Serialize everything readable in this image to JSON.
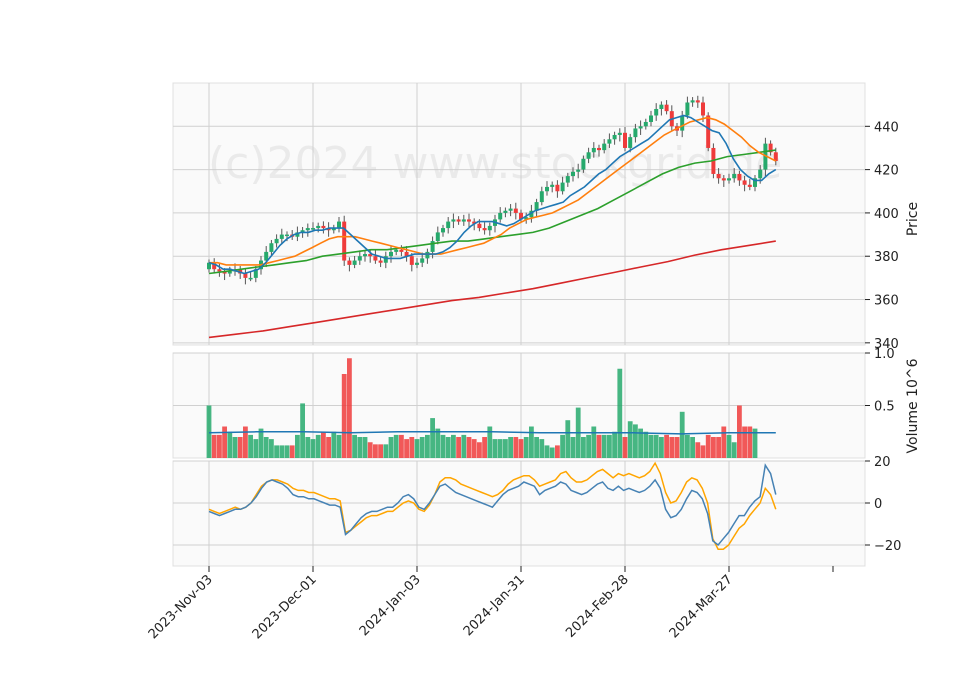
{
  "chart_data": {
    "type": "candlestick",
    "watermark": "(c)2024 www.stockgrid.de",
    "x_tick_labels": [
      "2023-Nov-03",
      "2023-Dec-01",
      "2024-Jan-03",
      "2024-Jan-31",
      "2024-Feb-28",
      "2024-Mar-27"
    ],
    "x_tick_index": [
      0,
      20,
      40,
      60,
      80,
      100
    ],
    "colors": {
      "up": "#26a96c",
      "down": "#ef3b3b",
      "ma_fast": "#1f77b4",
      "ma_mid": "#ff7f0e",
      "ma_slow": "#2ca02c",
      "ma_long": "#d62728",
      "signal": "#ffa500",
      "osc": "#4682b4"
    },
    "price": {
      "ylabel": "Price",
      "ylim": [
        339,
        460
      ],
      "yticks": [
        340,
        360,
        380,
        400,
        420,
        440
      ],
      "close": [
        377,
        374,
        373,
        372,
        373,
        374,
        372,
        370,
        370,
        374,
        378,
        382,
        386,
        388,
        390,
        390,
        389,
        391,
        392,
        393,
        393,
        394,
        393,
        392,
        393,
        396,
        378,
        376,
        378,
        380,
        381,
        380,
        378,
        377,
        380,
        382,
        383,
        382,
        380,
        376,
        377,
        379,
        382,
        387,
        391,
        393,
        396,
        397,
        396,
        397,
        396,
        395,
        393,
        392,
        394,
        397,
        400,
        401,
        402,
        400,
        397,
        398,
        401,
        405,
        410,
        412,
        413,
        410,
        414,
        417,
        419,
        420,
        425,
        428,
        430,
        429,
        432,
        434,
        436,
        437,
        430,
        435,
        439,
        440,
        442,
        445,
        448,
        450,
        447,
        440,
        438,
        445,
        451,
        452,
        451,
        445,
        430,
        418,
        416,
        415,
        416,
        418,
        415,
        413,
        412,
        416,
        420,
        432,
        428,
        424
      ],
      "ma_long": {
        "values": [
          342.5,
          344,
          345.5,
          347.5,
          349.5,
          351.5,
          353.5,
          355.5,
          357.5,
          359.5,
          361,
          363,
          365,
          367.5,
          370,
          372.5,
          375,
          377.5,
          380.5,
          383,
          385,
          387
        ]
      },
      "ma_fast": {
        "values": [
          377,
          376,
          374,
          374,
          373,
          372,
          373,
          374,
          377,
          381,
          385,
          388,
          390,
          391,
          391,
          392,
          392,
          393,
          393,
          393,
          390,
          387,
          384,
          381,
          380,
          379,
          379,
          379,
          380,
          381,
          381,
          381,
          381,
          382,
          384,
          387,
          391,
          394,
          396,
          396,
          396,
          395,
          394,
          395,
          397,
          399,
          401,
          402,
          403,
          404,
          405,
          408,
          410,
          412,
          415,
          418,
          420,
          423,
          426,
          428,
          430,
          432,
          434,
          437,
          440,
          443,
          444,
          445,
          444,
          442,
          440,
          438,
          437,
          432,
          425,
          420,
          417,
          415,
          415,
          418,
          420
        ]
      },
      "ma_mid": {
        "values": [
          377,
          377,
          376,
          376,
          376,
          376,
          376,
          377,
          378,
          379,
          380,
          382,
          384,
          386,
          388,
          389,
          389,
          389,
          388,
          387,
          386,
          385,
          384,
          383,
          382,
          381,
          381,
          381,
          382,
          383,
          384,
          385,
          386,
          388,
          390,
          393,
          395,
          397,
          398,
          399,
          400,
          402,
          404,
          406,
          409,
          412,
          415,
          418,
          421,
          424,
          427,
          430,
          433,
          436,
          438,
          440,
          442,
          443,
          444,
          443,
          441,
          438,
          435,
          431,
          428,
          426,
          424
        ]
      },
      "ma_slow": {
        "values": [
          372,
          373,
          374,
          375,
          376,
          377,
          378,
          380,
          381,
          382,
          383,
          383,
          384,
          385,
          386,
          387,
          387,
          388,
          389,
          390,
          391,
          393,
          396,
          399,
          402,
          406,
          410,
          414,
          418,
          421,
          423,
          424,
          426,
          427,
          428,
          429
        ]
      }
    },
    "volume": {
      "ylabel": "Volume  10^6",
      "ylim": [
        0,
        1.0
      ],
      "yticks": [
        0.5,
        1.0
      ],
      "values": [
        0.5,
        0.22,
        0.22,
        0.3,
        0.25,
        0.2,
        0.2,
        0.3,
        0.22,
        0.18,
        0.28,
        0.2,
        0.18,
        0.12,
        0.12,
        0.12,
        0.12,
        0.22,
        0.52,
        0.2,
        0.18,
        0.22,
        0.25,
        0.2,
        0.25,
        0.22,
        0.8,
        0.95,
        0.22,
        0.2,
        0.2,
        0.15,
        0.13,
        0.13,
        0.13,
        0.2,
        0.22,
        0.22,
        0.18,
        0.2,
        0.18,
        0.2,
        0.22,
        0.38,
        0.28,
        0.22,
        0.2,
        0.22,
        0.2,
        0.22,
        0.2,
        0.18,
        0.15,
        0.2,
        0.3,
        0.18,
        0.18,
        0.18,
        0.2,
        0.2,
        0.18,
        0.2,
        0.3,
        0.2,
        0.18,
        0.12,
        0.1,
        0.12,
        0.22,
        0.36,
        0.2,
        0.48,
        0.2,
        0.22,
        0.3,
        0.22,
        0.22,
        0.22,
        0.25,
        0.85,
        0.2,
        0.35,
        0.32,
        0.28,
        0.25,
        0.22,
        0.22,
        0.2,
        0.22,
        0.2,
        0.2,
        0.44,
        0.22,
        0.2,
        0.15,
        0.12,
        0.22,
        0.2,
        0.2,
        0.3,
        0.22,
        0.15,
        0.5,
        0.3,
        0.3,
        0.28
      ],
      "ma_values": [
        0.24,
        0.25,
        0.25,
        0.24,
        0.25,
        0.25,
        0.25,
        0.24,
        0.24,
        0.24,
        0.23,
        0.24,
        0.24
      ]
    },
    "oscillator": {
      "ylim": [
        -30,
        20
      ],
      "yticks": [
        -20,
        0,
        20
      ],
      "osc": [
        -4,
        -5,
        -6,
        -5,
        -4,
        -3,
        -3,
        -2,
        0,
        3,
        7,
        10,
        11,
        10,
        9,
        7,
        4,
        3,
        3,
        2,
        2,
        1,
        0,
        -1,
        -1,
        -2,
        -15,
        -13,
        -10,
        -7,
        -5,
        -4,
        -4,
        -3,
        -2,
        -2,
        0,
        3,
        4,
        2,
        -2,
        -3,
        0,
        4,
        8,
        9,
        7,
        5,
        4,
        3,
        2,
        1,
        0,
        -1,
        -2,
        1,
        4,
        6,
        7,
        8,
        10,
        9,
        8,
        4,
        6,
        7,
        8,
        10,
        9,
        6,
        5,
        4,
        5,
        7,
        9,
        10,
        7,
        6,
        8,
        6,
        7,
        6,
        5,
        6,
        8,
        11,
        7,
        -3,
        -7,
        -6,
        -3,
        2,
        6,
        5,
        2,
        -5,
        -18,
        -20,
        -17,
        -14,
        -10,
        -6,
        -6,
        -2,
        1,
        3,
        18,
        14,
        4
      ],
      "signal": [
        -3,
        -4,
        -5,
        -4,
        -3,
        -2,
        -3,
        -2,
        0,
        4,
        8,
        10,
        11,
        11,
        10,
        9,
        7,
        6,
        6,
        5,
        5,
        4,
        3,
        2,
        2,
        1,
        -14,
        -13,
        -11,
        -9,
        -7,
        -6,
        -6,
        -5,
        -4,
        -4,
        -2,
        0,
        1,
        0,
        -3,
        -4,
        -1,
        4,
        10,
        12,
        12,
        11,
        9,
        8,
        7,
        6,
        5,
        4,
        3,
        4,
        6,
        9,
        11,
        12,
        13,
        13,
        11,
        8,
        9,
        10,
        11,
        14,
        15,
        12,
        10,
        10,
        11,
        13,
        15,
        16,
        14,
        12,
        14,
        13,
        14,
        13,
        12,
        13,
        15,
        19,
        14,
        5,
        0,
        1,
        5,
        10,
        12,
        11,
        7,
        0,
        -17,
        -22,
        -22,
        -20,
        -16,
        -12,
        -10,
        -6,
        -3,
        0,
        7,
        4,
        -3
      ]
    }
  }
}
